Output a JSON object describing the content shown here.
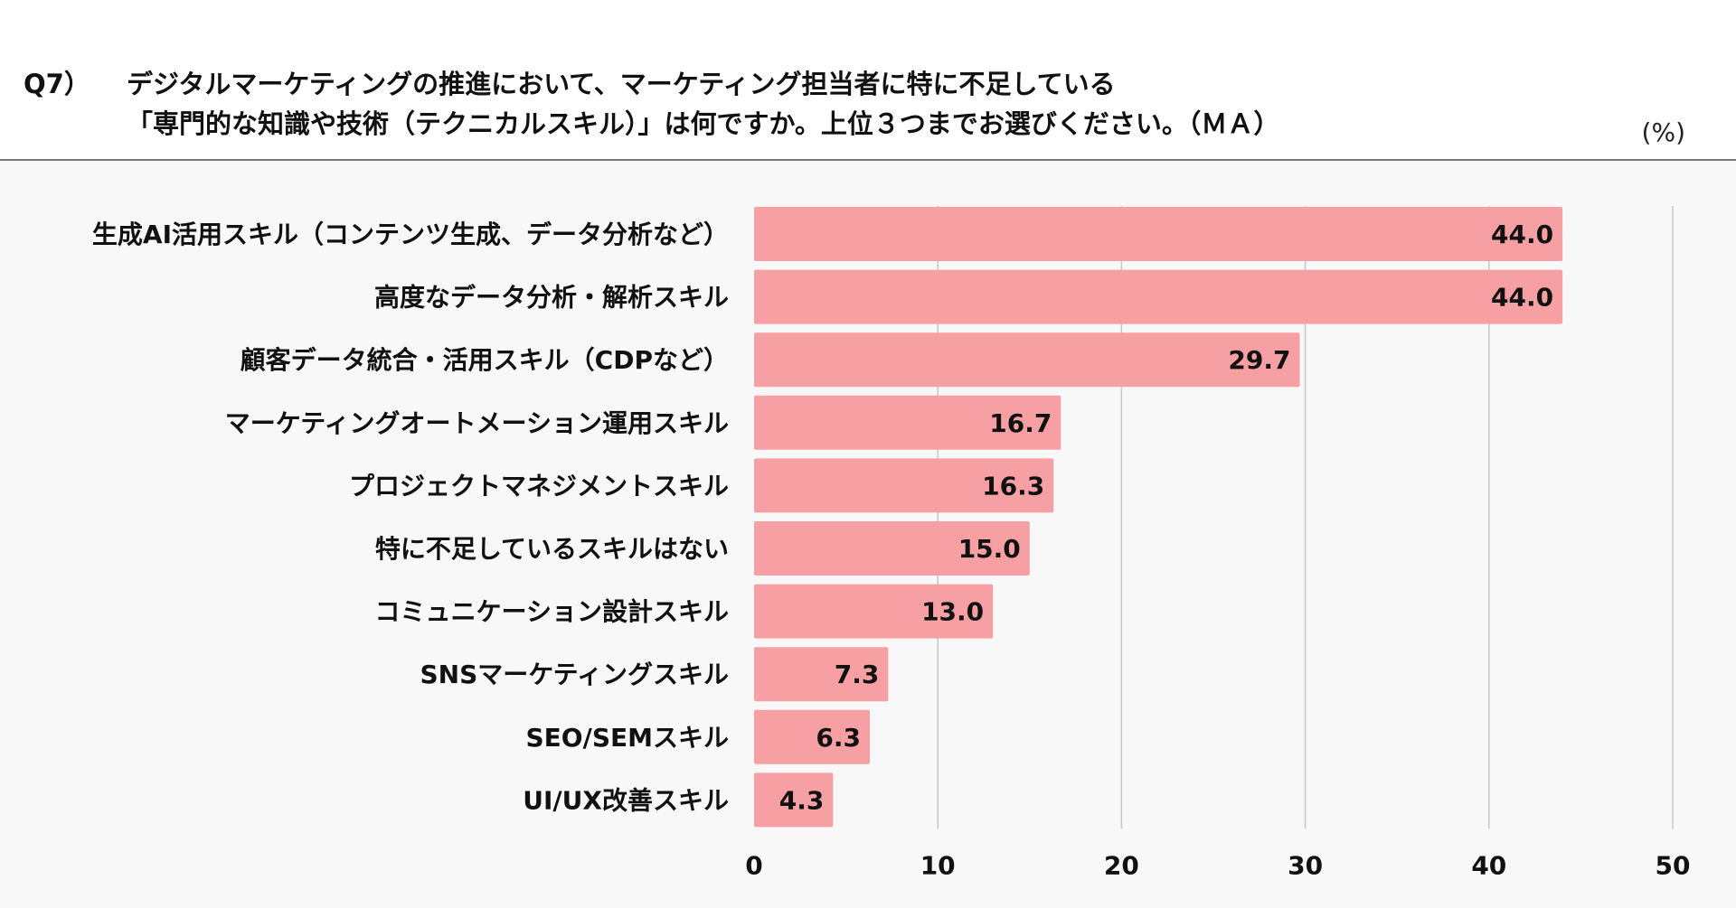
{
  "question": {
    "number": "Q7）",
    "line1": "デジタルマーケティングの推進において、マーケティング担当者に特に不足している",
    "line2": "「専門的な知識や技術（テクニカルスキル）」は何ですか。上位３つまでお選びください。（ＭＡ）"
  },
  "unit": "(%)",
  "colors": {
    "bar": "#f7a0a4",
    "grid": "#c8c8c8"
  },
  "chart_data": {
    "type": "bar",
    "orientation": "horizontal",
    "categories": [
      "生成AI活用スキル（コンテンツ生成、データ分析など）",
      "高度なデータ分析・解析スキル",
      "顧客データ統合・活用スキル（CDPなど）",
      "マーケティングオートメーション運用スキル",
      "プロジェクトマネジメントスキル",
      "特に不足しているスキルはない",
      "コミュニケーション設計スキル",
      "SNSマーケティングスキル",
      "SEO/SEMスキル",
      "UI/UX改善スキル"
    ],
    "values": [
      44.0,
      44.0,
      29.7,
      16.7,
      16.3,
      15.0,
      13.0,
      7.3,
      6.3,
      4.3
    ],
    "value_labels": [
      "44.0",
      "44.0",
      "29.7",
      "16.7",
      "16.3",
      "15.0",
      "13.0",
      "7.3",
      "6.3",
      "4.3"
    ],
    "xlim": [
      0,
      50
    ],
    "xticks": [
      0,
      10,
      20,
      30,
      40,
      50
    ],
    "grid": true
  }
}
